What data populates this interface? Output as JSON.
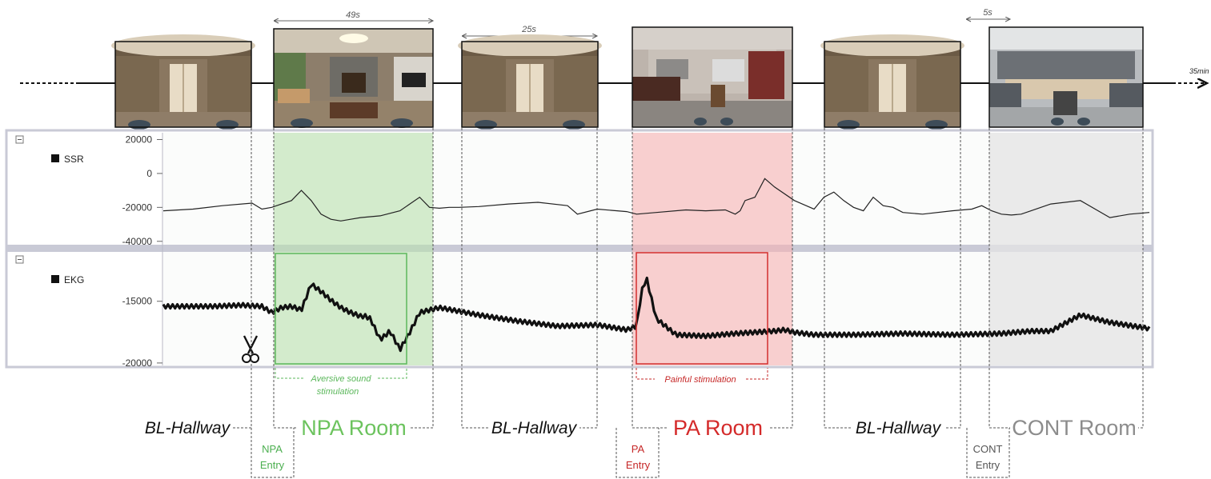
{
  "timeline": {
    "end_label": "35min",
    "durations": [
      {
        "label": "49s",
        "from": 342,
        "to": 541
      },
      {
        "label": "25s",
        "from": 577,
        "to": 746
      },
      {
        "label": "5s",
        "from": 1207,
        "to": 1262
      }
    ]
  },
  "scenes": [
    {
      "name": "hallway-1",
      "kind": "hallway"
    },
    {
      "name": "npa-room",
      "kind": "living"
    },
    {
      "name": "hallway-2",
      "kind": "hallway"
    },
    {
      "name": "pa-room",
      "kind": "bathroom"
    },
    {
      "name": "hallway-3",
      "kind": "hallway"
    },
    {
      "name": "cont-room",
      "kind": "kitchen"
    }
  ],
  "phases": [
    {
      "label": "BL-Hallway",
      "color": "#111111"
    },
    {
      "label": "NPA Room",
      "color": "#6cc35e"
    },
    {
      "label": "BL-Hallway",
      "color": "#111111"
    },
    {
      "label": "PA Room",
      "color": "#d42a2a"
    },
    {
      "label": "BL-Hallway",
      "color": "#111111"
    },
    {
      "label": "CONT Room",
      "color": "#8c8c8c"
    }
  ],
  "entries": [
    {
      "line1": "NPA",
      "line2": "Entry",
      "color": "#4caf50"
    },
    {
      "line1": "PA",
      "line2": "Entry",
      "color": "#c62828"
    },
    {
      "line1": "CONT",
      "line2": "Entry",
      "color": "#555555"
    }
  ],
  "stimulations": [
    {
      "line1": "Aversive sound",
      "line2": "stimulation",
      "color": "#5cb85c"
    },
    {
      "line1": "Painful stimulation",
      "line2": "",
      "color": "#c62828"
    }
  ],
  "chart_data": [
    {
      "type": "line",
      "title": "SSR",
      "yticks": [
        20000,
        0,
        -20000,
        -40000
      ],
      "ylim": [
        -42000,
        24000
      ],
      "series": [
        {
          "name": "SSR",
          "x": [
            0,
            3,
            6,
            9,
            10,
            11,
            12,
            13,
            14,
            15,
            16,
            17,
            18,
            19,
            20,
            22,
            24,
            26,
            27,
            28,
            29,
            30,
            32,
            35,
            38,
            41,
            42,
            44,
            47,
            48,
            50,
            53,
            55,
            57,
            58,
            58.5,
            59,
            60,
            61,
            62,
            64,
            66,
            67,
            68,
            69,
            70,
            71,
            72,
            73,
            74,
            75,
            77,
            80,
            82,
            83,
            84,
            85,
            86,
            87,
            88,
            89,
            90,
            93,
            96,
            98,
            100
          ],
          "y": [
            -22000,
            -21000,
            -19000,
            -17500,
            -21000,
            -20000,
            -18000,
            -16000,
            -10000,
            -16000,
            -24000,
            -27000,
            -28000,
            -27000,
            -26000,
            -25000,
            -22000,
            -14000,
            -20000,
            -20500,
            -20000,
            -20000,
            -19500,
            -18000,
            -17000,
            -19000,
            -24000,
            -21000,
            -22500,
            -24000,
            -23000,
            -21500,
            -22000,
            -21500,
            -24000,
            -22000,
            -16000,
            -14000,
            -3000,
            -8000,
            -16000,
            -21000,
            -14000,
            -11000,
            -16000,
            -20000,
            -22000,
            -14000,
            -19000,
            -20000,
            -23000,
            -24000,
            -22000,
            -21000,
            -19000,
            -22000,
            -24000,
            -24500,
            -24000,
            -22000,
            -20000,
            -18000,
            -16000,
            -26000,
            -24000,
            -23000
          ]
        }
      ]
    },
    {
      "type": "line",
      "title": "EKG",
      "yticks": [
        -15000,
        -20000
      ],
      "ylim": [
        -20200,
        -11000
      ],
      "series": [
        {
          "name": "EKG",
          "x": [
            0,
            5,
            8,
            10,
            11,
            11.5,
            12,
            13,
            14,
            15,
            16,
            17,
            18,
            19,
            20,
            20.5,
            21,
            22,
            23,
            24,
            25,
            26,
            28,
            32,
            36,
            40,
            44,
            47,
            48,
            48.5,
            49,
            50,
            52,
            55,
            58,
            60,
            62,
            63,
            64,
            66,
            70,
            75,
            80,
            85,
            88,
            90,
            93,
            96,
            100
          ],
          "y": [
            -15500,
            -15500,
            -15400,
            -15500,
            -16000,
            -15800,
            -15600,
            -15500,
            -15800,
            -13700,
            -14300,
            -15000,
            -15600,
            -16000,
            -16300,
            -16300,
            -16500,
            -18200,
            -17500,
            -19000,
            -17600,
            -16000,
            -15600,
            -16200,
            -16700,
            -17100,
            -17000,
            -17400,
            -17100,
            -14300,
            -13200,
            -16500,
            -17800,
            -17900,
            -17700,
            -17600,
            -17500,
            -17400,
            -17600,
            -17800,
            -17800,
            -17700,
            -17800,
            -17700,
            -17500,
            -17500,
            -16200,
            -16800,
            -17300
          ]
        }
      ]
    }
  ]
}
